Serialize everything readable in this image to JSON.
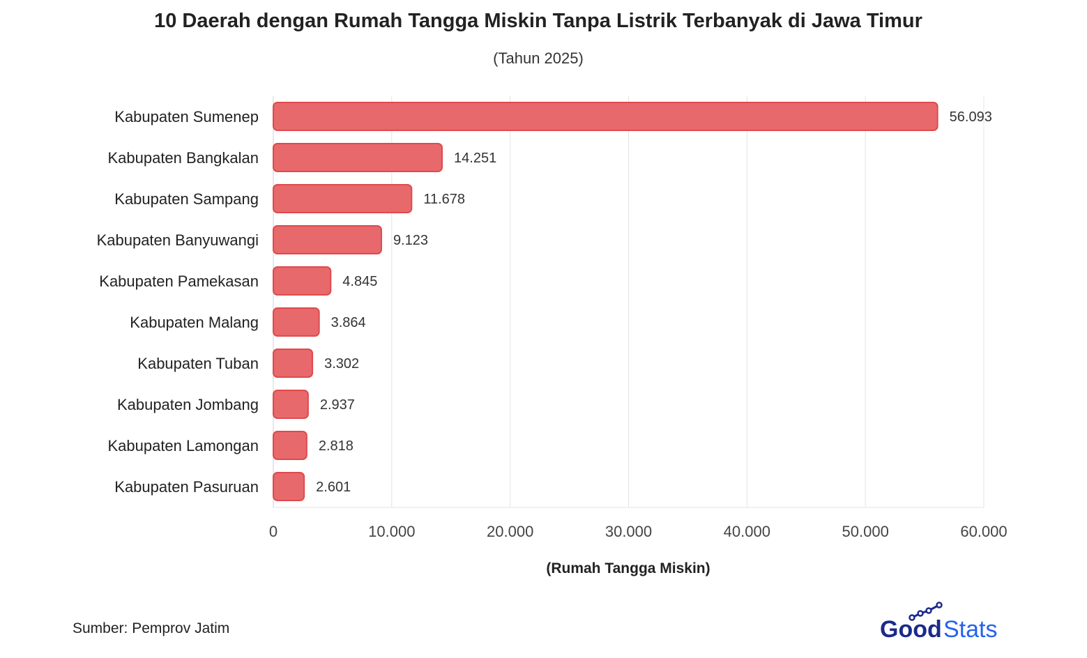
{
  "chart_data": {
    "type": "bar",
    "orientation": "horizontal",
    "title": "10 Daerah dengan Rumah Tangga Miskin Tanpa Listrik Terbanyak di Jawa Timur",
    "subtitle": "(Tahun 2025)",
    "xlabel": "(Rumah Tangga Miskin)",
    "ylabel": "",
    "xlim": [
      0,
      60000
    ],
    "xticks": [
      0,
      10000,
      20000,
      30000,
      40000,
      50000,
      60000
    ],
    "xtick_labels": [
      "0",
      "10.000",
      "20.000",
      "30.000",
      "40.000",
      "50.000",
      "60.000"
    ],
    "grid": true,
    "bar_color": "#e8696b",
    "bar_border_color": "#de4a4d",
    "categories": [
      "Kabupaten Sumenep",
      "Kabupaten Bangkalan",
      "Kabupaten Sampang",
      "Kabupaten Banyuwangi",
      "Kabupaten Pamekasan",
      "Kabupaten Malang",
      "Kabupaten Tuban",
      "Kabupaten Jombang",
      "Kabupaten Lamongan",
      "Kabupaten Pasuruan"
    ],
    "values": [
      56093,
      14251,
      11678,
      9123,
      4845,
      3864,
      3302,
      2937,
      2818,
      2601
    ],
    "value_labels": [
      "56.093",
      "14.251",
      "11.678",
      "9.123",
      "4.845",
      "3.864",
      "3.302",
      "2.937",
      "2.818",
      "2.601"
    ]
  },
  "source": "Sumber: Pemprov Jatim",
  "logo": {
    "part1": "Good",
    "part2": "Stats",
    "primary_color": "#1b2a8a",
    "secondary_color": "#2563eb"
  }
}
